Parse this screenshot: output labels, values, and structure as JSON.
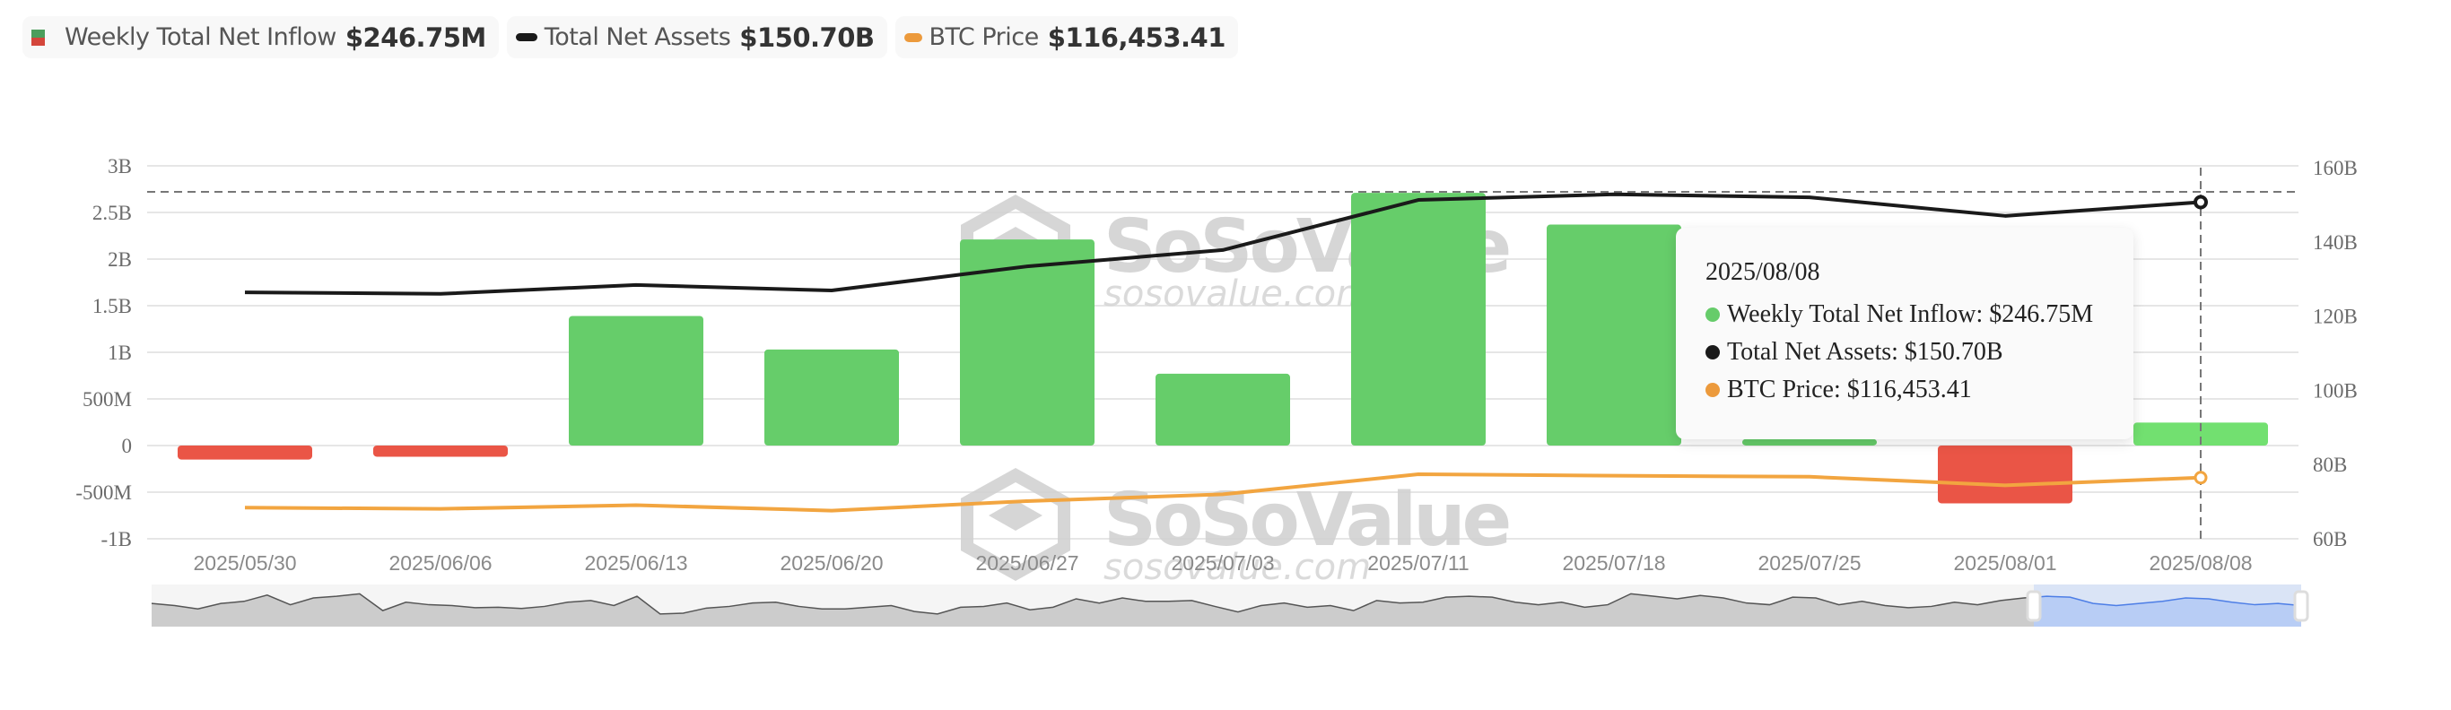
{
  "legend": [
    {
      "label": "Weekly Total Net Inflow",
      "value": "$246.75M",
      "icon": "bar-legend-icon",
      "colors": {
        "top": "#4c9e5c",
        "bottom": "#d4463b"
      }
    },
    {
      "label": "Total Net Assets",
      "value": "$150.70B",
      "icon": "line-legend-icon",
      "color": "#1a1a1a"
    },
    {
      "label": "BTC Price",
      "value": "$116,453.41",
      "icon": "line-legend-icon",
      "color": "#ec9a3c"
    }
  ],
  "tooltip": {
    "date": "2025/08/08",
    "rows": [
      {
        "label": "Weekly Total Net Inflow: $246.75M",
        "color": "#66cc6a"
      },
      {
        "label": "Total Net Assets: $150.70B",
        "color": "#1a1a1a"
      },
      {
        "label": "BTC Price: $116,453.41",
        "color": "#ec9a3c"
      }
    ]
  },
  "watermark": {
    "brand": "SoSoValue",
    "url": "sosovalue.com"
  },
  "colors": {
    "positive": "#66cd6a",
    "negative": "#ea5546",
    "assets_line": "#1a1a1a",
    "btc_line": "#f2a540",
    "grid": "#e6e6e6",
    "axis_text": "#6b6b6b",
    "navigator_fill": "#cccccc",
    "navigator_bg": "#f5f5f5",
    "navigator_selected": "#b8cdf5",
    "navigator_selected_line": "#4d7ee6"
  },
  "chart_data": {
    "type": "bar",
    "title": "",
    "categories": [
      "2025/05/30",
      "2025/06/06",
      "2025/06/13",
      "2025/06/20",
      "2025/06/27",
      "2025/07/03",
      "2025/07/11",
      "2025/07/18",
      "2025/07/25",
      "2025/08/01",
      "2025/08/08"
    ],
    "series": [
      {
        "name": "Weekly Total Net Inflow",
        "type": "bar",
        "axis": "left",
        "unit": "B",
        "values": [
          -0.15,
          -0.12,
          1.39,
          1.03,
          2.21,
          0.77,
          2.71,
          2.37,
          0.07,
          -0.62,
          0.24675
        ]
      },
      {
        "name": "Total Net Assets",
        "type": "line",
        "axis": "right",
        "unit": "B",
        "values": [
          126.4,
          126.0,
          128.4,
          126.9,
          133.4,
          137.8,
          151.3,
          152.8,
          152.0,
          147.0,
          150.7
        ]
      },
      {
        "name": "BTC Price",
        "type": "line",
        "axis": "hidden",
        "unit": "USD",
        "values": [
          104500,
          104000,
          105500,
          103300,
          107100,
          109800,
          117800,
          117200,
          116800,
          113400,
          116453.41
        ]
      }
    ],
    "left_axis": {
      "ticks": [
        "3B",
        "2.5B",
        "2B",
        "1.5B",
        "1B",
        "500M",
        "0",
        "-500M",
        "-1B"
      ],
      "ylim": [
        -1,
        3
      ]
    },
    "right_axis": {
      "ticks": [
        "160B",
        "140B",
        "120B",
        "100B",
        "80B",
        "60B"
      ],
      "ylim": [
        60,
        160
      ]
    },
    "hover": {
      "index": 10,
      "crosshair_value_left": 2.72
    },
    "grid": true,
    "legend_position": "top-left"
  },
  "navigator": {
    "selected_range": [
      "2025/08/01",
      "2025/08/08"
    ],
    "profile": [
      0.55,
      0.5,
      0.42,
      0.55,
      0.6,
      0.75,
      0.52,
      0.68,
      0.72,
      0.78,
      0.38,
      0.58,
      0.52,
      0.5,
      0.45,
      0.46,
      0.43,
      0.48,
      0.58,
      0.62,
      0.5,
      0.72,
      0.3,
      0.32,
      0.44,
      0.48,
      0.56,
      0.58,
      0.48,
      0.42,
      0.42,
      0.46,
      0.5,
      0.36,
      0.3,
      0.46,
      0.48,
      0.56,
      0.4,
      0.46,
      0.66,
      0.56,
      0.68,
      0.6,
      0.6,
      0.62,
      0.48,
      0.35,
      0.5,
      0.56,
      0.46,
      0.5,
      0.38,
      0.62,
      0.56,
      0.58,
      0.7,
      0.72,
      0.7,
      0.58,
      0.52,
      0.58,
      0.46,
      0.52,
      0.78,
      0.72,
      0.66,
      0.74,
      0.68,
      0.56,
      0.52,
      0.7,
      0.68,
      0.52,
      0.6,
      0.5,
      0.45,
      0.48,
      0.58,
      0.52,
      0.62,
      0.68,
      0.72,
      0.7,
      0.55,
      0.5,
      0.55,
      0.6,
      0.68,
      0.66,
      0.58,
      0.52,
      0.55,
      0.5
    ]
  }
}
